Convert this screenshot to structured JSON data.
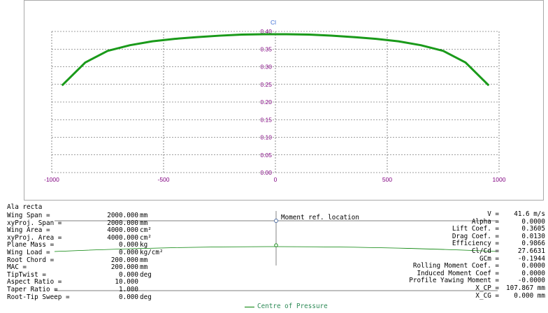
{
  "colors": {
    "curve": "#1a9a1a",
    "tick_labels": "#800080",
    "cl_title": "#3f6fd6",
    "grid": "#404040",
    "centre_of_pressure": "#2e8b57"
  },
  "chart_data": {
    "type": "line",
    "title": "Cl",
    "xlabel": "",
    "ylabel": "Cl",
    "xlim": [
      -1000,
      1000
    ],
    "ylim": [
      0.0,
      0.4
    ],
    "x_ticks": [
      "-1000",
      "-500",
      "0",
      "500",
      "1000"
    ],
    "y_ticks": [
      "0.00",
      "0.05",
      "0.10",
      "0.15",
      "0.20",
      "0.25",
      "0.30",
      "0.35",
      "0.40"
    ],
    "grid": true,
    "series": [
      {
        "x": [
          -954,
          -850,
          -750,
          -650,
          -550,
          -450,
          -350,
          -250,
          -150,
          -50,
          50,
          150,
          250,
          350,
          450,
          550,
          650,
          750,
          850,
          954
        ],
        "y": [
          0.247,
          0.312,
          0.345,
          0.361,
          0.372,
          0.379,
          0.384,
          0.388,
          0.391,
          0.392,
          0.392,
          0.391,
          0.388,
          0.384,
          0.379,
          0.372,
          0.361,
          0.345,
          0.312,
          0.247
        ]
      }
    ]
  },
  "wing": {
    "name": "Ala recta",
    "properties": [
      {
        "label": "Wing Span =",
        "value": "2000.000",
        "unit": "mm"
      },
      {
        "label": "xyProj. Span =",
        "value": "2000.000",
        "unit": "mm"
      },
      {
        "label": "Wing Area =",
        "value": "4000.000",
        "unit": "cm²"
      },
      {
        "label": "xyProj. Area =",
        "value": "4000.000",
        "unit": "cm²"
      },
      {
        "label": "Plane Mass =",
        "value": "0.000",
        "unit": "kg"
      },
      {
        "label": "Wing Load =",
        "value": "0.000",
        "unit": "kg/cm²"
      },
      {
        "label": "Root Chord =",
        "value": "200.000",
        "unit": "mm"
      },
      {
        "label": "MAC =",
        "value": "200.000",
        "unit": "mm"
      },
      {
        "label": "TipTwist =",
        "value": "0.000",
        "unit": "deg"
      },
      {
        "label": "Aspect Ratio =",
        "value": "10.000",
        "unit": ""
      },
      {
        "label": "Taper Ratio =",
        "value": "1.000",
        "unit": ""
      },
      {
        "label": "Root-Tip Sweep =",
        "value": "0.000",
        "unit": "deg"
      }
    ]
  },
  "results": [
    {
      "label": "V =",
      "value": "41.6 m/s"
    },
    {
      "label": "Alpha =",
      "value": "0.0000"
    },
    {
      "label": "Lift Coef. =",
      "value": "0.3605"
    },
    {
      "label": "Drag Coef. =",
      "value": "0.0130"
    },
    {
      "label": "Efficiency =",
      "value": "0.9866"
    },
    {
      "label": "Cl/Cd =",
      "value": "27.6631"
    },
    {
      "label": "GCm =",
      "value": "-0.1944"
    },
    {
      "label": "Rolling Moment Coef. =",
      "value": "0.0000"
    },
    {
      "label": "Induced Moment Coef =",
      "value": "0.0000"
    },
    {
      "label": "Profile Yawing Moment =",
      "value": "-0.0000"
    },
    {
      "label": "X_CP =",
      "value": "107.867 mm"
    },
    {
      "label": "X_CG =",
      "value": "0.000 mm"
    }
  ],
  "moment_ref_label": "Moment ref. location",
  "centre_of_pressure_label": "Centre of Pressure"
}
